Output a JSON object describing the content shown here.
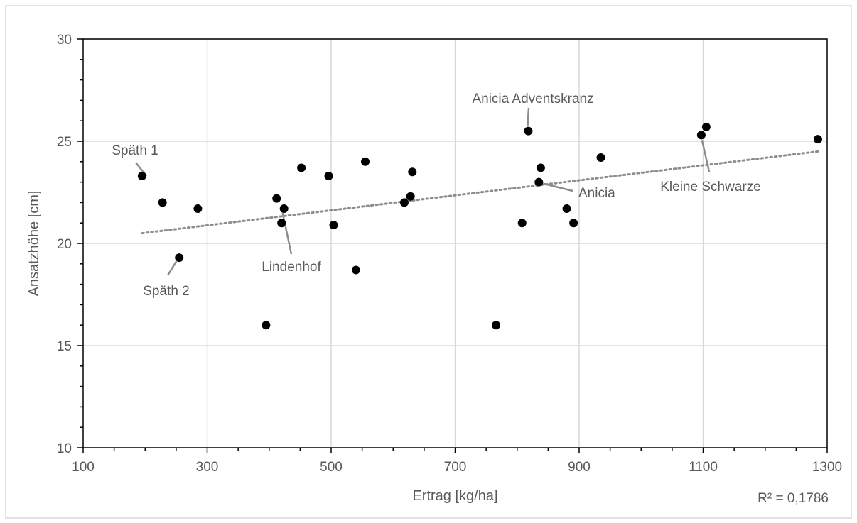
{
  "colors": {
    "points": "#000000",
    "grid": "#d9d9d9",
    "axis": "#000000",
    "trendline": "#8c8c8c",
    "text": "#595959",
    "leader": "#8c8c8c",
    "border": "#d9d9d9"
  },
  "chart_data": {
    "type": "scatter",
    "title": "",
    "xlabel": "Ertrag [kg/ha]",
    "ylabel": "Ansatzhöhe [cm]",
    "xlim": [
      100,
      1300
    ],
    "ylim": [
      10,
      30
    ],
    "x_ticks": [
      "100",
      "300",
      "500",
      "700",
      "900",
      "1100",
      "1300"
    ],
    "y_ticks": [
      "10",
      "15",
      "20",
      "25",
      "30"
    ],
    "grid": true,
    "legend": "none",
    "points": [
      {
        "x": 195,
        "y": 23.3
      },
      {
        "x": 228,
        "y": 22.0
      },
      {
        "x": 255,
        "y": 19.3
      },
      {
        "x": 285,
        "y": 21.7
      },
      {
        "x": 395,
        "y": 16.0
      },
      {
        "x": 412,
        "y": 22.2
      },
      {
        "x": 420,
        "y": 21.0
      },
      {
        "x": 424,
        "y": 21.7
      },
      {
        "x": 452,
        "y": 23.7
      },
      {
        "x": 496,
        "y": 23.3
      },
      {
        "x": 504,
        "y": 20.9
      },
      {
        "x": 540,
        "y": 18.7
      },
      {
        "x": 555,
        "y": 24.0
      },
      {
        "x": 618,
        "y": 22.0
      },
      {
        "x": 628,
        "y": 22.3
      },
      {
        "x": 631,
        "y": 23.5
      },
      {
        "x": 766,
        "y": 16.0
      },
      {
        "x": 808,
        "y": 21.0
      },
      {
        "x": 818,
        "y": 25.5
      },
      {
        "x": 835,
        "y": 23.0
      },
      {
        "x": 838,
        "y": 23.7
      },
      {
        "x": 880,
        "y": 21.7
      },
      {
        "x": 891,
        "y": 21.0
      },
      {
        "x": 935,
        "y": 24.2
      },
      {
        "x": 1097,
        "y": 25.3
      },
      {
        "x": 1105,
        "y": 25.7
      },
      {
        "x": 1285,
        "y": 25.1
      }
    ],
    "trendline": {
      "type": "linear",
      "x": [
        195,
        1285
      ],
      "y": [
        20.5,
        24.5
      ],
      "r_squared_label": "R² = 0,1786"
    },
    "annotations": [
      {
        "text": "Späth 1",
        "point": {
          "x": 195,
          "y": 23.3
        }
      },
      {
        "text": "Späth 2",
        "point": {
          "x": 255,
          "y": 19.3
        }
      },
      {
        "text": "Lindenhof",
        "point": {
          "x": 424,
          "y": 21.7
        }
      },
      {
        "text": "Anicia Adventskranz",
        "point": {
          "x": 818,
          "y": 25.5
        }
      },
      {
        "text": "Anicia",
        "point": {
          "x": 835,
          "y": 23.0
        }
      },
      {
        "text": "Kleine Schwarze",
        "point": {
          "x": 1097,
          "y": 25.3
        }
      }
    ]
  }
}
